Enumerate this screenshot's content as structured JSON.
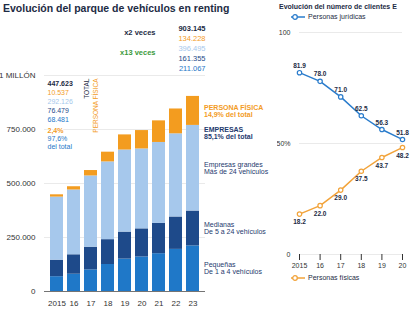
{
  "chart_data": [
    {
      "type": "bar",
      "title": "Evolución del parque de vehículos en renting",
      "stacked": true,
      "grid": true,
      "categories": [
        "2015",
        "16",
        "17",
        "18",
        "19",
        "20",
        "21",
        "22",
        "23"
      ],
      "series": [
        {
          "name": "Pequeñas",
          "description": "De 1 a 4 vehículos",
          "color": "#1f78c8",
          "values": [
            68481,
            80000,
            100000,
            125000,
            150000,
            160000,
            175000,
            195000,
            211067
          ]
        },
        {
          "name": "Medianas",
          "description": "De 5 a 24 vehículos",
          "color": "#1e4a8a",
          "values": [
            76479,
            90000,
            105000,
            115000,
            125000,
            130000,
            140000,
            150000,
            161355
          ]
        },
        {
          "name": "Empresas grandes",
          "description": "Más de 24 vehículos",
          "color": "#a6c8ec",
          "values": [
            292126,
            300000,
            330000,
            360000,
            380000,
            370000,
            375000,
            385000,
            396495
          ]
        },
        {
          "name": "PERSONA FÍSICA",
          "description": "14,9% del total",
          "color": "#f39c1f",
          "values": [
            10537,
            15000,
            25000,
            45000,
            70000,
            85000,
            100000,
            115000,
            134228
          ]
        }
      ],
      "ylim": [
        0,
        1000000
      ],
      "yticks": [
        0,
        {
          "value": 250000,
          "label": "250.000"
        },
        {
          "value": 500000,
          "label": "500.000"
        },
        {
          "value": 750000,
          "label": "750.000"
        },
        {
          "value": 1000000,
          "label": "1 MILLÓN"
        }
      ],
      "annotations": {
        "start_values": [
          "447.623",
          "10.537",
          "292.126",
          "76.479",
          "68.481"
        ],
        "start_shares": [
          "2,4%",
          "97,6%",
          "del total"
        ],
        "end_values": [
          "903.145",
          "134.228",
          "396.495",
          "161.355",
          "211.067"
        ],
        "total_label": "TOTAL",
        "persona_label": "PERSONA FÍSICA",
        "growth_total": "x2 veces",
        "growth_persona": "x13 veces",
        "empresas": [
          "EMPRESAS",
          "85,1% del total"
        ]
      }
    },
    {
      "type": "line",
      "title": "Evolución del número de clientes E",
      "grid": true,
      "data_labels": true,
      "marker": "circle",
      "x": [
        2015,
        2016,
        2017,
        2018,
        2019,
        2020
      ],
      "series": [
        {
          "name": "Personas jurídicas",
          "color": "#2a7ccc",
          "values": [
            81.9,
            78.0,
            71.0,
            62.5,
            56.3,
            51.8
          ],
          "value_labels": [
            "81.9",
            "78.0",
            "71.0",
            "62.5",
            "56.3",
            "51.8"
          ]
        },
        {
          "name": "Personas físicas",
          "color": "#f2a33a",
          "values": [
            18.2,
            22.0,
            29.0,
            37.5,
            43.7,
            48.2
          ],
          "value_labels": [
            "18.2",
            "22.0",
            "29.0",
            "37.5",
            "43.7",
            "48.2"
          ]
        }
      ],
      "xlim": [
        2015,
        2020
      ],
      "xticks": [
        2015,
        {
          "value": 2016,
          "label": "16"
        },
        {
          "value": 2017,
          "label": "17"
        },
        {
          "value": 2018,
          "label": "18"
        },
        {
          "value": 2019,
          "label": "19"
        },
        {
          "value": 2020,
          "label": "20"
        }
      ],
      "ylim": [
        0,
        100
      ],
      "yticks": [
        0,
        {
          "value": 50,
          "label": "50%"
        },
        100
      ]
    }
  ]
}
